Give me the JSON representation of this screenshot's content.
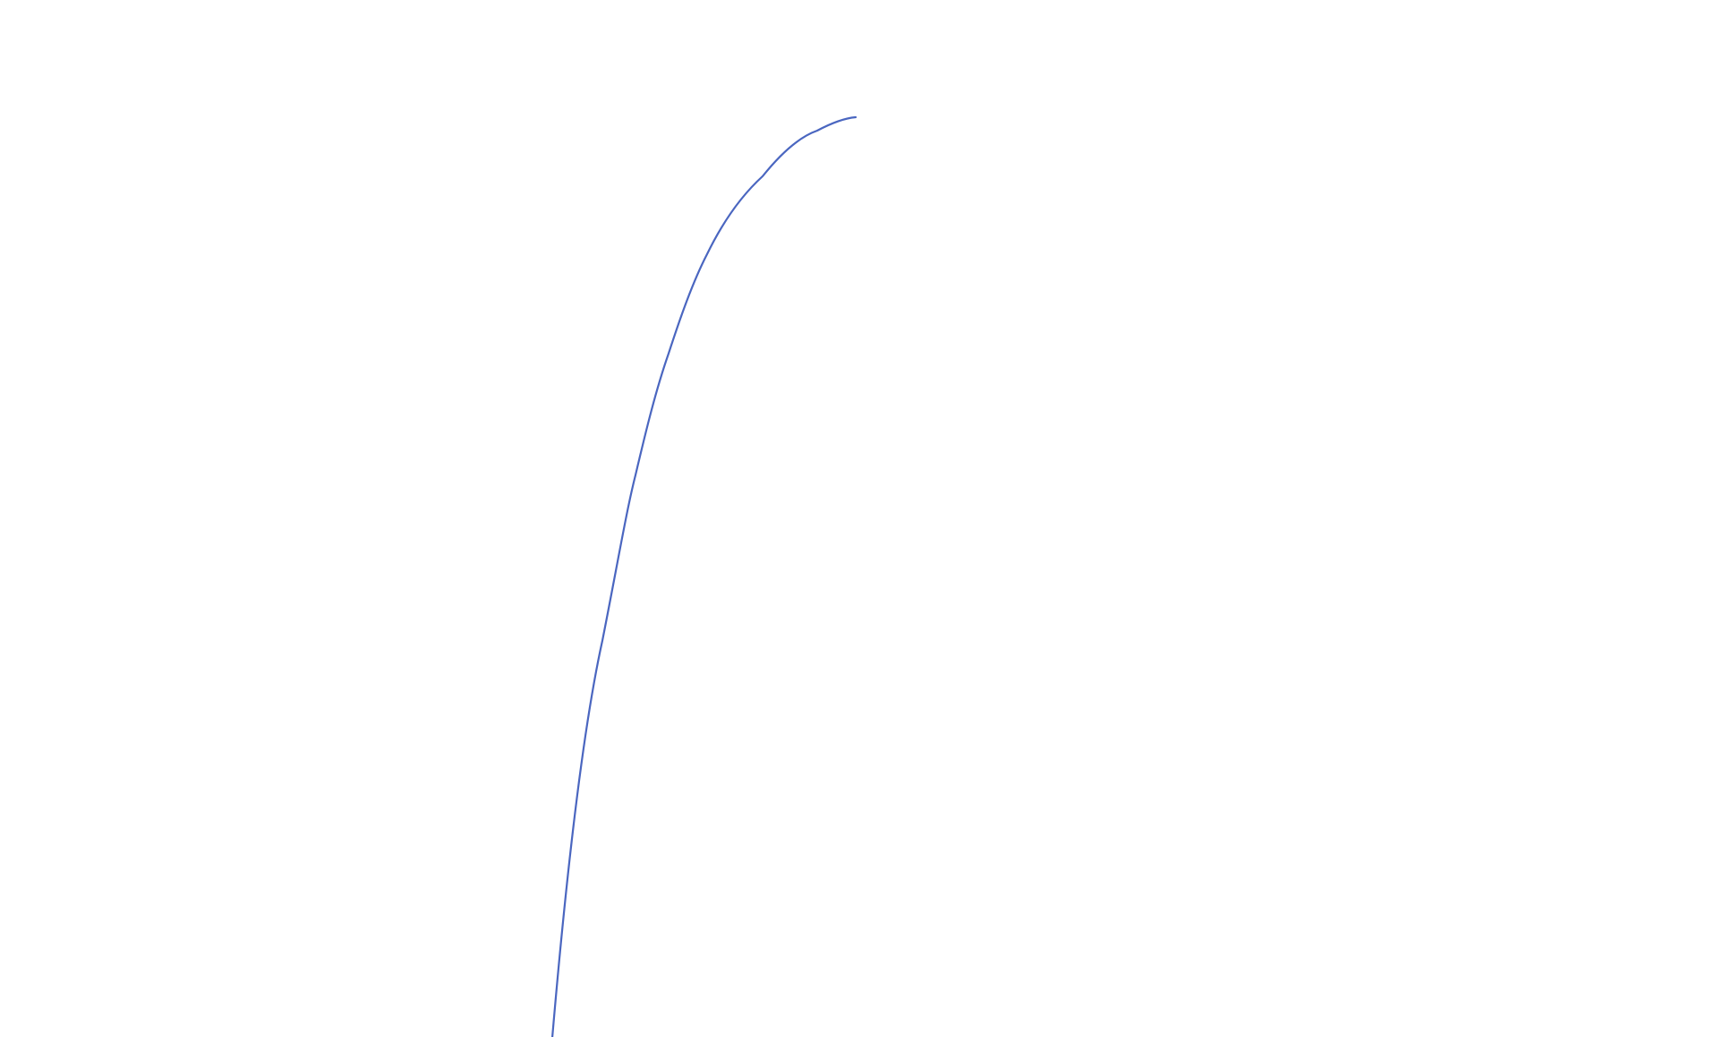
{
  "chart_data": {
    "type": "line",
    "title": "",
    "xlabel": "",
    "ylabel": "",
    "axes_visible": false,
    "grid": false,
    "legend": "none",
    "series": [
      {
        "color": "#4a66c0"
      }
    ]
  }
}
